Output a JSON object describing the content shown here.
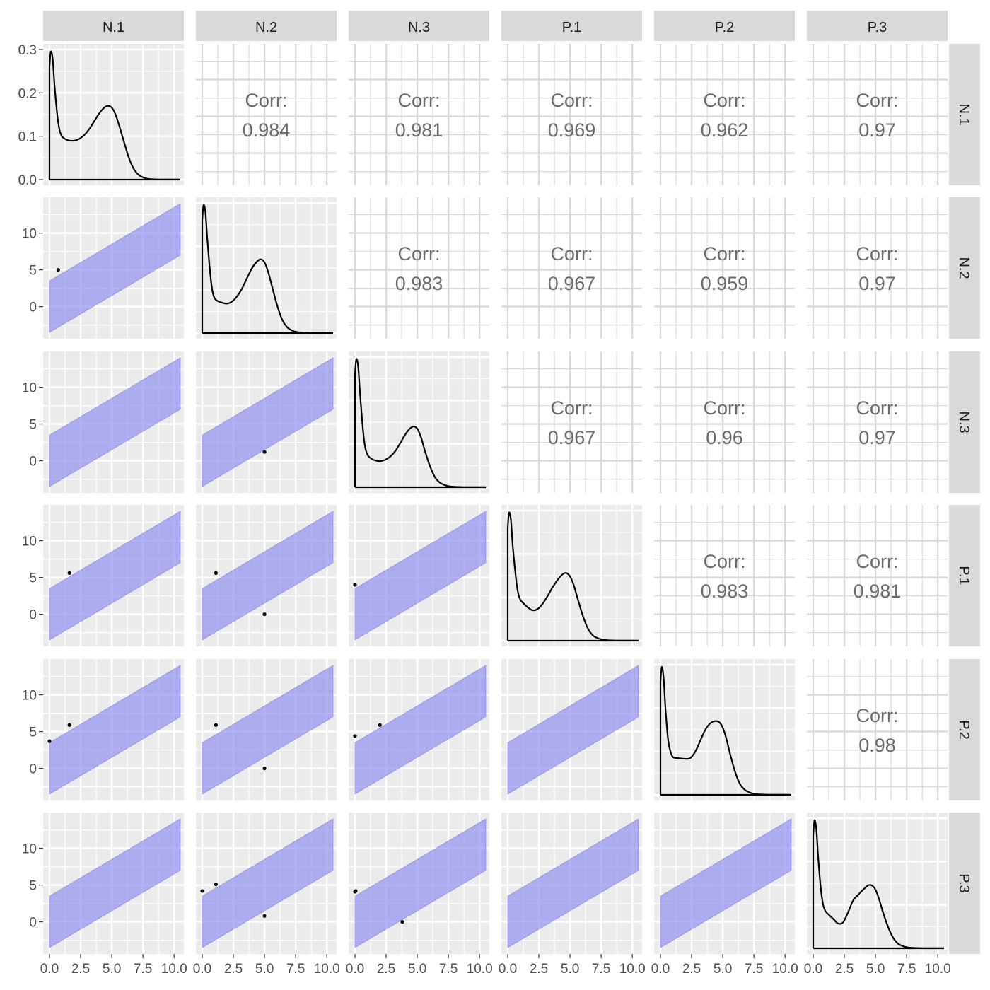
{
  "variables": [
    "N.1",
    "N.2",
    "N.3",
    "P.1",
    "P.2",
    "P.3"
  ],
  "colors": {
    "panel_bg": "#EBEBEB",
    "grid": "#FFFFFF",
    "blank_panel_grid": "#D9D9D9",
    "strip_bg": "#D9D9D9",
    "band_fill": "#8080F0",
    "line": "#000000",
    "tick_text": "#4D4D4D",
    "corr_text": "#6B6B6B"
  },
  "chart_data": {
    "type": "scatter-matrix",
    "title": "",
    "panels_layout": "6x6 matrix: lower triangle scatter with shaded band, diagonal density, upper triangle correlation text",
    "x_axis": {
      "range": [
        0,
        10.5
      ],
      "ticks": [
        0,
        2.5,
        5,
        7.5,
        10
      ],
      "tick_labels": [
        "0.0",
        "2.5",
        "5.0",
        "7.5",
        "10.0"
      ]
    },
    "density_y_axis": {
      "range": [
        0,
        0.3
      ],
      "ticks": [
        0,
        0.1,
        0.2,
        0.3
      ],
      "tick_labels": [
        "0.0",
        "0.1",
        "0.2",
        "0.3"
      ]
    },
    "scatter_y_axis": {
      "range": [
        -3.5,
        14
      ],
      "ticks": [
        0,
        5,
        10
      ],
      "tick_labels": [
        "0",
        "5",
        "10"
      ]
    },
    "band": {
      "x_range": [
        0,
        10.5
      ],
      "lower_start": -3.5,
      "lower_end": 7,
      "upper_start": 3.5,
      "upper_end": 14
    },
    "corr_label": "Corr:",
    "correlations": [
      {
        "row": 0,
        "col": 1,
        "value": "0.984"
      },
      {
        "row": 0,
        "col": 2,
        "value": "0.981"
      },
      {
        "row": 0,
        "col": 3,
        "value": "0.969"
      },
      {
        "row": 0,
        "col": 4,
        "value": "0.962"
      },
      {
        "row": 0,
        "col": 5,
        "value": "0.97"
      },
      {
        "row": 1,
        "col": 2,
        "value": "0.983"
      },
      {
        "row": 1,
        "col": 3,
        "value": "0.967"
      },
      {
        "row": 1,
        "col": 4,
        "value": "0.959"
      },
      {
        "row": 1,
        "col": 5,
        "value": "0.97"
      },
      {
        "row": 2,
        "col": 3,
        "value": "0.967"
      },
      {
        "row": 2,
        "col": 4,
        "value": "0.96"
      },
      {
        "row": 2,
        "col": 5,
        "value": "0.97"
      },
      {
        "row": 3,
        "col": 4,
        "value": "0.983"
      },
      {
        "row": 3,
        "col": 5,
        "value": "0.981"
      },
      {
        "row": 4,
        "col": 5,
        "value": "0.98"
      }
    ],
    "scatter_points": [
      {
        "row": 1,
        "col": 0,
        "points": [
          [
            0.7,
            5
          ]
        ]
      },
      {
        "row": 2,
        "col": 1,
        "points": [
          [
            5,
            1.2
          ]
        ]
      },
      {
        "row": 3,
        "col": 0,
        "points": [
          [
            1.6,
            5.6
          ]
        ]
      },
      {
        "row": 3,
        "col": 1,
        "points": [
          [
            1.1,
            5.6
          ],
          [
            5,
            0
          ]
        ]
      },
      {
        "row": 3,
        "col": 2,
        "points": [
          [
            0,
            4
          ]
        ]
      },
      {
        "row": 4,
        "col": 0,
        "points": [
          [
            1.6,
            5.9
          ],
          [
            0,
            3.7
          ]
        ]
      },
      {
        "row": 4,
        "col": 1,
        "points": [
          [
            1.1,
            5.9
          ],
          [
            5,
            0
          ]
        ]
      },
      {
        "row": 4,
        "col": 2,
        "points": [
          [
            0,
            4.4
          ],
          [
            2,
            5.9
          ]
        ]
      },
      {
        "row": 5,
        "col": 1,
        "points": [
          [
            0,
            4.2
          ],
          [
            1.1,
            5.1
          ],
          [
            5,
            0.8
          ]
        ]
      },
      {
        "row": 5,
        "col": 2,
        "points": [
          [
            0,
            4.1
          ],
          [
            0.05,
            4.2
          ],
          [
            3.8,
            0
          ]
        ]
      }
    ],
    "densities": [
      {
        "var": "N.1",
        "x": [
          0,
          0.1,
          0.25,
          0.4,
          0.6,
          0.8,
          1.0,
          1.3,
          1.6,
          2.0,
          2.4,
          2.8,
          3.2,
          3.6,
          4.0,
          4.4,
          4.7,
          5.0,
          5.3,
          5.6,
          6.0,
          6.4,
          6.8,
          7.2,
          7.6,
          8.0,
          8.6,
          9.2,
          10.0,
          10.5
        ],
        "y": [
          0.26,
          0.295,
          0.28,
          0.22,
          0.155,
          0.115,
          0.1,
          0.093,
          0.09,
          0.09,
          0.094,
          0.103,
          0.117,
          0.135,
          0.153,
          0.166,
          0.17,
          0.166,
          0.15,
          0.124,
          0.085,
          0.048,
          0.023,
          0.01,
          0.004,
          0.0015,
          0.0005,
          0.0002,
          0.0001,
          0.0001
        ]
      },
      {
        "var": "N.2",
        "x": [
          0,
          0.1,
          0.25,
          0.4,
          0.6,
          0.8,
          1.0,
          1.3,
          1.6,
          2.0,
          2.4,
          2.8,
          3.2,
          3.6,
          4.0,
          4.4,
          4.7,
          5.0,
          5.3,
          5.6,
          6.0,
          6.4,
          6.8,
          7.2,
          7.6,
          8.0,
          8.6,
          9.2,
          10.0,
          10.5
        ],
        "y": [
          0.26,
          0.295,
          0.28,
          0.22,
          0.15,
          0.1,
          0.08,
          0.073,
          0.07,
          0.068,
          0.073,
          0.085,
          0.103,
          0.127,
          0.15,
          0.165,
          0.17,
          0.163,
          0.14,
          0.108,
          0.065,
          0.032,
          0.014,
          0.006,
          0.0025,
          0.001,
          0.0004,
          0.0002,
          0.0001,
          0.0001
        ]
      },
      {
        "var": "N.3",
        "x": [
          0,
          0.1,
          0.25,
          0.4,
          0.6,
          0.8,
          1.0,
          1.3,
          1.6,
          2.0,
          2.4,
          2.8,
          3.2,
          3.6,
          4.0,
          4.4,
          4.7,
          5.0,
          5.3,
          5.6,
          6.0,
          6.4,
          6.8,
          7.2,
          7.6,
          8.0,
          8.6,
          9.2,
          10.0,
          10.5
        ],
        "y": [
          0.26,
          0.295,
          0.28,
          0.22,
          0.145,
          0.095,
          0.075,
          0.066,
          0.062,
          0.06,
          0.063,
          0.07,
          0.082,
          0.1,
          0.12,
          0.135,
          0.14,
          0.135,
          0.115,
          0.085,
          0.05,
          0.024,
          0.011,
          0.005,
          0.002,
          0.001,
          0.0004,
          0.0002,
          0.0001,
          0.0001
        ]
      },
      {
        "var": "P.1",
        "x": [
          0,
          0.1,
          0.25,
          0.4,
          0.6,
          0.8,
          1.0,
          1.3,
          1.6,
          2.0,
          2.4,
          2.8,
          3.2,
          3.6,
          4.0,
          4.4,
          4.7,
          5.0,
          5.3,
          5.6,
          6.0,
          6.4,
          6.8,
          7.2,
          7.6,
          8.0,
          8.6,
          9.2,
          10.0,
          10.5
        ],
        "y": [
          0.26,
          0.295,
          0.28,
          0.22,
          0.16,
          0.115,
          0.095,
          0.085,
          0.077,
          0.07,
          0.073,
          0.085,
          0.103,
          0.123,
          0.14,
          0.153,
          0.156,
          0.148,
          0.128,
          0.098,
          0.06,
          0.03,
          0.013,
          0.006,
          0.0025,
          0.001,
          0.0004,
          0.0002,
          0.0001,
          0.0001
        ]
      },
      {
        "var": "P.2",
        "x": [
          0,
          0.1,
          0.25,
          0.4,
          0.6,
          0.8,
          1.0,
          1.3,
          1.6,
          2.0,
          2.4,
          2.8,
          3.2,
          3.6,
          4.0,
          4.4,
          4.7,
          5.0,
          5.3,
          5.6,
          6.0,
          6.4,
          6.8,
          7.2,
          7.6,
          8.0,
          8.6,
          9.2,
          10.0,
          10.5
        ],
        "y": [
          0.26,
          0.295,
          0.27,
          0.2,
          0.13,
          0.1,
          0.087,
          0.085,
          0.084,
          0.083,
          0.085,
          0.1,
          0.125,
          0.15,
          0.165,
          0.17,
          0.168,
          0.155,
          0.128,
          0.093,
          0.052,
          0.024,
          0.011,
          0.005,
          0.002,
          0.001,
          0.0004,
          0.0002,
          0.0001,
          0.0001
        ]
      },
      {
        "var": "P.3",
        "x": [
          0,
          0.1,
          0.25,
          0.4,
          0.6,
          0.8,
          1.0,
          1.3,
          1.6,
          2.0,
          2.4,
          2.8,
          3.2,
          3.6,
          4.0,
          4.4,
          4.7,
          5.0,
          5.3,
          5.6,
          6.0,
          6.4,
          6.8,
          7.2,
          7.6,
          8.0,
          8.6,
          9.2,
          10.0,
          10.5
        ],
        "y": [
          0.26,
          0.295,
          0.275,
          0.21,
          0.14,
          0.1,
          0.085,
          0.076,
          0.068,
          0.057,
          0.06,
          0.083,
          0.11,
          0.123,
          0.135,
          0.145,
          0.145,
          0.135,
          0.112,
          0.083,
          0.05,
          0.025,
          0.011,
          0.005,
          0.002,
          0.001,
          0.0004,
          0.0002,
          0.0001,
          0.0001
        ]
      }
    ]
  }
}
